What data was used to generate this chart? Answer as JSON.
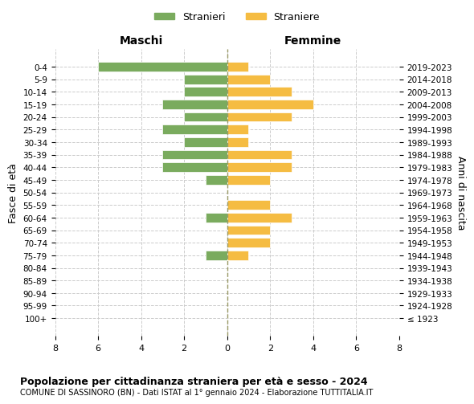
{
  "age_groups": [
    "100+",
    "95-99",
    "90-94",
    "85-89",
    "80-84",
    "75-79",
    "70-74",
    "65-69",
    "60-64",
    "55-59",
    "50-54",
    "45-49",
    "40-44",
    "35-39",
    "30-34",
    "25-29",
    "20-24",
    "15-19",
    "10-14",
    "5-9",
    "0-4"
  ],
  "birth_years": [
    "≤ 1923",
    "1924-1928",
    "1929-1933",
    "1934-1938",
    "1939-1943",
    "1944-1948",
    "1949-1953",
    "1954-1958",
    "1959-1963",
    "1964-1968",
    "1969-1973",
    "1974-1978",
    "1979-1983",
    "1984-1988",
    "1989-1993",
    "1994-1998",
    "1999-2003",
    "2004-2008",
    "2009-2013",
    "2014-2018",
    "2019-2023"
  ],
  "maschi": [
    0,
    0,
    0,
    0,
    0,
    1,
    0,
    0,
    1,
    0,
    0,
    1,
    3,
    3,
    2,
    3,
    2,
    3,
    2,
    2,
    6
  ],
  "femmine": [
    0,
    0,
    0,
    0,
    0,
    1,
    2,
    2,
    3,
    2,
    0,
    2,
    3,
    3,
    1,
    1,
    3,
    4,
    3,
    2,
    1
  ],
  "color_maschi": "#7aab5e",
  "color_femmine": "#f5bc42",
  "xlim": 8,
  "title": "Popolazione per cittadinanza straniera per età e sesso - 2024",
  "subtitle": "COMUNE DI SASSINORO (BN) - Dati ISTAT al 1° gennaio 2024 - Elaborazione TUTTITALIA.IT",
  "ylabel_left": "Fasce di età",
  "ylabel_right": "Anni di nascita",
  "xlabel_maschi": "Maschi",
  "xlabel_femmine": "Femmine",
  "legend_maschi": "Stranieri",
  "legend_femmine": "Straniere",
  "bg_color": "#ffffff",
  "grid_color": "#cccccc",
  "center_line_color": "#999966"
}
